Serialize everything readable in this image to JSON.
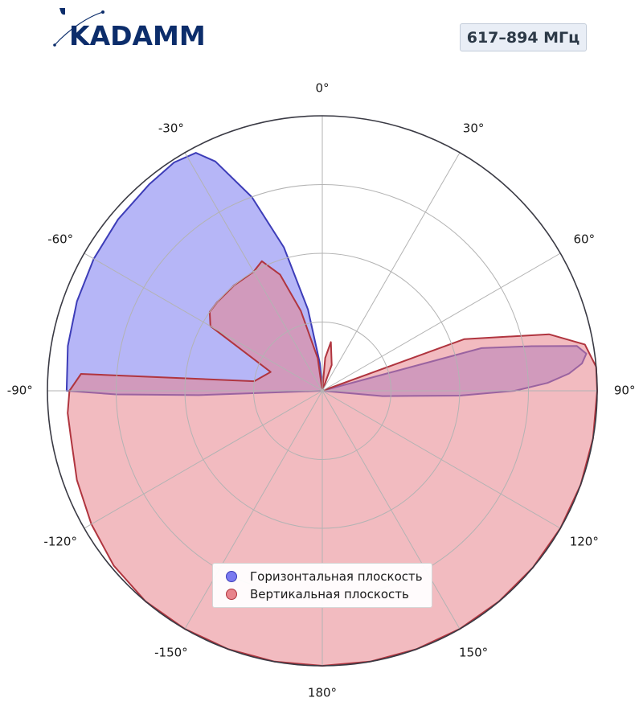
{
  "logo": {
    "text": "KADAMM",
    "color": "#0c2d6b"
  },
  "frequency_badge": "617–894 МГц",
  "chart_data": {
    "type": "polar",
    "angle_ticks": [
      "0°",
      "30°",
      "60°",
      "90°",
      "120°",
      "150°",
      "180°",
      "-150°",
      "-120°",
      "-90°",
      "-60°",
      "-30°"
    ],
    "grid": true,
    "r_range": [
      0,
      1
    ],
    "legend_position": "bottom-center",
    "series": [
      {
        "name": "Горизонтальная плоскость",
        "color": "#7a7af0",
        "edge": "#3d3db8",
        "points": [
          {
            "theta": -90,
            "r": 0.93
          },
          {
            "theta": -80,
            "r": 0.94
          },
          {
            "theta": -70,
            "r": 0.95
          },
          {
            "theta": -60,
            "r": 0.96
          },
          {
            "theta": -50,
            "r": 0.97
          },
          {
            "theta": -40,
            "r": 0.98
          },
          {
            "theta": -33,
            "r": 0.99
          },
          {
            "theta": -28,
            "r": 0.98
          },
          {
            "theta": -25,
            "r": 0.92
          },
          {
            "theta": -20,
            "r": 0.75
          },
          {
            "theta": -15,
            "r": 0.54
          },
          {
            "theta": -10,
            "r": 0.3
          },
          {
            "theta": -5,
            "r": 0.1
          },
          {
            "theta": 0,
            "r": 0.0
          },
          {
            "theta": 30,
            "r": 0.0
          },
          {
            "theta": 60,
            "r": 0.0
          },
          {
            "theta": 75,
            "r": 0.6
          },
          {
            "theta": 78,
            "r": 0.78
          },
          {
            "theta": 80,
            "r": 0.94
          },
          {
            "theta": 82,
            "r": 0.97
          },
          {
            "theta": 84,
            "r": 0.95
          },
          {
            "theta": 86,
            "r": 0.9
          },
          {
            "theta": 88,
            "r": 0.82
          },
          {
            "theta": 90,
            "r": 0.7
          },
          {
            "theta": 92,
            "r": 0.5
          },
          {
            "theta": 95,
            "r": 0.22
          },
          {
            "theta": 100,
            "r": 0.0
          },
          {
            "theta": 180,
            "r": 0.0
          },
          {
            "theta": 265,
            "r": 0.0
          },
          {
            "theta": 268,
            "r": 0.45
          },
          {
            "theta": 269,
            "r": 0.75
          },
          {
            "theta": 270,
            "r": 0.93
          }
        ]
      },
      {
        "name": "Вертикальная плоскость",
        "color": "#e8848c",
        "edge": "#b0353f",
        "points": [
          {
            "theta": 0,
            "r": 0.0
          },
          {
            "theta": 5,
            "r": 0.12
          },
          {
            "theta": 10,
            "r": 0.18
          },
          {
            "theta": 20,
            "r": 0.1
          },
          {
            "theta": 40,
            "r": 0.0
          },
          {
            "theta": 60,
            "r": 0.0
          },
          {
            "theta": 70,
            "r": 0.55
          },
          {
            "theta": 76,
            "r": 0.85
          },
          {
            "theta": 80,
            "r": 0.97
          },
          {
            "theta": 85,
            "r": 1.0
          },
          {
            "theta": 90,
            "r": 1.0
          },
          {
            "theta": 100,
            "r": 1.0
          },
          {
            "theta": 110,
            "r": 1.0
          },
          {
            "theta": 120,
            "r": 1.0
          },
          {
            "theta": 130,
            "r": 1.0
          },
          {
            "theta": 140,
            "r": 1.0
          },
          {
            "theta": 150,
            "r": 1.0
          },
          {
            "theta": 160,
            "r": 1.0
          },
          {
            "theta": 170,
            "r": 1.0
          },
          {
            "theta": 180,
            "r": 1.0
          },
          {
            "theta": 190,
            "r": 1.0
          },
          {
            "theta": 200,
            "r": 1.0
          },
          {
            "theta": 210,
            "r": 1.0
          },
          {
            "theta": 220,
            "r": 1.0
          },
          {
            "theta": 230,
            "r": 0.99
          },
          {
            "theta": 240,
            "r": 0.97
          },
          {
            "theta": 250,
            "r": 0.95
          },
          {
            "theta": 260,
            "r": 0.93
          },
          {
            "theta": 265,
            "r": 0.93
          },
          {
            "theta": 270,
            "r": 0.92
          },
          {
            "theta": 274,
            "r": 0.88
          },
          {
            "theta": 278,
            "r": 0.25
          },
          {
            "theta": 290,
            "r": 0.2
          },
          {
            "theta": 300,
            "r": 0.47
          },
          {
            "theta": 305,
            "r": 0.5
          },
          {
            "theta": 310,
            "r": 0.5
          },
          {
            "theta": 320,
            "r": 0.5
          },
          {
            "theta": 330,
            "r": 0.5
          },
          {
            "theta": 335,
            "r": 0.52
          },
          {
            "theta": 340,
            "r": 0.45
          },
          {
            "theta": 345,
            "r": 0.3
          },
          {
            "theta": 352,
            "r": 0.12
          },
          {
            "theta": 360,
            "r": 0.0
          }
        ]
      }
    ]
  }
}
